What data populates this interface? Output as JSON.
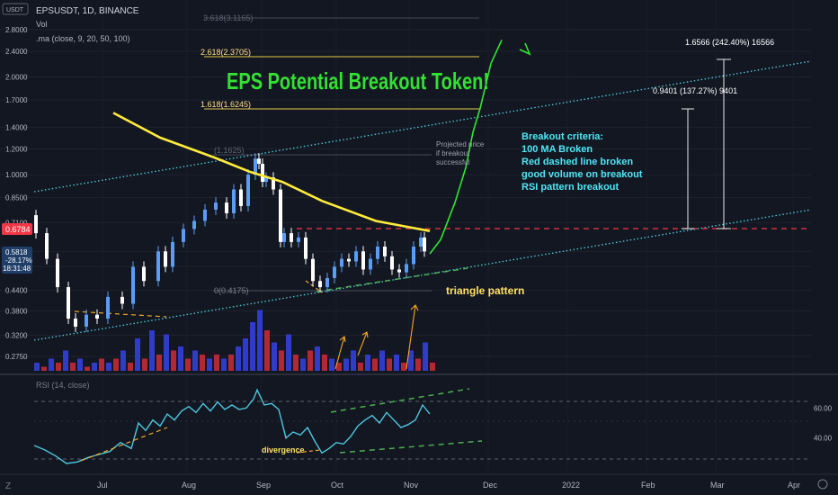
{
  "header": {
    "symbol": "EPSUSDT, 1D, BINANCE",
    "volume_label": "Vol",
    "ma_label": ".ma (close, 9, 20, 50, 100)",
    "currency": "USDT"
  },
  "price_badge": {
    "current": "0.6784",
    "price": "0.5818",
    "change": "-28.17%",
    "countdown": "18:31:48"
  },
  "annotations": {
    "title": "EPS Potential Breakout Token!",
    "triangle": "triangle pattern",
    "divergence": "divergence",
    "projected": [
      "Projected price",
      "if breakout",
      "successful"
    ],
    "criteria": [
      "Breakout criteria:",
      "100 MA Broken",
      "Red dashed line broken",
      "good volume on breakout",
      "RSI pattern breakout"
    ],
    "fib_1": "3.618(3.1165)",
    "fib_2": "2.618(2.3705)",
    "fib_3": "1.618(1.6245)",
    "fib_4": "(1.1625)",
    "fib_5": "0(0.4175)",
    "measure_1": "0.9401 (137.27%) 9401",
    "measure_2": "1.6566 (242.40%) 16566",
    "rsi_label": "RSI (14, close)"
  },
  "colors": {
    "background": "#131722",
    "bull": "#5b9cf6",
    "bear": "#ffffff",
    "ma": "#ffeb3b",
    "channel": "#4dd0e1",
    "resistance": "#f23645",
    "support": "#4caf50",
    "projection": "#32e632",
    "title": "#33e033",
    "criteria": "#4fe6f5",
    "vol_bull": "#2f3cc9",
    "vol_bear": "#b22833",
    "rsi": "#4dc7e0",
    "fib_line": "#e6c84b"
  },
  "chart_data": {
    "type": "line",
    "title": "EPSUSDT, 1D, BINANCE",
    "price_axis": {
      "scale": "log",
      "ticks": [
        "2.8000",
        "2.4000",
        "2.0000",
        "1.7000",
        "1.4000",
        "1.2000",
        "1.0000",
        "0.8500",
        "0.7100",
        "0.5800",
        "0.5200",
        "0.4400",
        "0.3800",
        "0.3200",
        "0.2750"
      ]
    },
    "time_axis": {
      "ticks": [
        "Jul",
        "Aug",
        "Sep",
        "Oct",
        "Nov",
        "Dec",
        "2022",
        "Feb",
        "Mar",
        "Apr"
      ]
    },
    "rsi_axis": {
      "ticks": [
        "60.00",
        "40.00"
      ],
      "ylim": [
        20,
        80
      ]
    },
    "price_path": [
      [
        0,
        0.75
      ],
      [
        3,
        0.66
      ],
      [
        6,
        0.55
      ],
      [
        9,
        0.45
      ],
      [
        11,
        0.36
      ],
      [
        14,
        0.34
      ],
      [
        17,
        0.37
      ],
      [
        20,
        0.36
      ],
      [
        24,
        0.42
      ],
      [
        27,
        0.4
      ],
      [
        30,
        0.52
      ],
      [
        34,
        0.47
      ],
      [
        36,
        0.58
      ],
      [
        38,
        0.52
      ],
      [
        41,
        0.62
      ],
      [
        44,
        0.68
      ],
      [
        47,
        0.72
      ],
      [
        50,
        0.78
      ],
      [
        53,
        0.82
      ],
      [
        55,
        0.76
      ],
      [
        57,
        0.9
      ],
      [
        59,
        0.8
      ],
      [
        61,
        1.0
      ],
      [
        62,
        1.12
      ],
      [
        63,
        1.08
      ],
      [
        64,
        0.95
      ],
      [
        66,
        0.98
      ],
      [
        68,
        0.9
      ],
      [
        69,
        0.62
      ],
      [
        71,
        0.66
      ],
      [
        73,
        0.62
      ],
      [
        75,
        0.64
      ],
      [
        77,
        0.55
      ],
      [
        79,
        0.47
      ],
      [
        81,
        0.45
      ],
      [
        83,
        0.48
      ],
      [
        85,
        0.52
      ],
      [
        87,
        0.55
      ],
      [
        89,
        0.54
      ],
      [
        91,
        0.58
      ],
      [
        93,
        0.51
      ],
      [
        95,
        0.55
      ],
      [
        97,
        0.6
      ],
      [
        99,
        0.56
      ],
      [
        101,
        0.51
      ],
      [
        103,
        0.5
      ],
      [
        105,
        0.53
      ],
      [
        107,
        0.6
      ],
      [
        108,
        0.64
      ],
      [
        110,
        0.58
      ]
    ],
    "ma100_path": [
      [
        22,
        1.55
      ],
      [
        35,
        1.3
      ],
      [
        50,
        1.13
      ],
      [
        60,
        1.02
      ],
      [
        69,
        0.95
      ],
      [
        80,
        0.83
      ],
      [
        95,
        0.72
      ],
      [
        110,
        0.67
      ]
    ],
    "projection_path": [
      [
        110,
        0.57
      ],
      [
        113,
        0.63
      ],
      [
        117,
        0.82
      ],
      [
        120,
        1.05
      ],
      [
        122,
        1.35
      ],
      [
        124,
        1.6
      ],
      [
        127,
        2.2
      ],
      [
        130,
        2.6
      ]
    ],
    "volume_bars": [
      [
        0,
        2,
        1
      ],
      [
        2,
        1,
        0
      ],
      [
        4,
        3,
        1
      ],
      [
        6,
        2,
        0
      ],
      [
        8,
        5,
        1
      ],
      [
        10,
        2,
        0
      ],
      [
        12,
        3,
        1
      ],
      [
        14,
        1,
        0
      ],
      [
        16,
        2,
        1
      ],
      [
        18,
        3,
        0
      ],
      [
        20,
        2,
        1
      ],
      [
        22,
        3,
        0
      ],
      [
        24,
        5,
        1
      ],
      [
        26,
        2,
        0
      ],
      [
        28,
        8,
        1
      ],
      [
        30,
        3,
        0
      ],
      [
        32,
        10,
        1
      ],
      [
        34,
        4,
        0
      ],
      [
        36,
        9,
        1
      ],
      [
        38,
        5,
        0
      ],
      [
        40,
        6,
        1
      ],
      [
        42,
        3,
        0
      ],
      [
        44,
        5,
        1
      ],
      [
        46,
        4,
        0
      ],
      [
        48,
        3,
        1
      ],
      [
        50,
        4,
        0
      ],
      [
        52,
        3,
        1
      ],
      [
        54,
        4,
        0
      ],
      [
        56,
        6,
        1
      ],
      [
        58,
        8,
        1
      ],
      [
        60,
        12,
        1
      ],
      [
        62,
        15,
        1
      ],
      [
        64,
        10,
        0
      ],
      [
        66,
        7,
        1
      ],
      [
        68,
        5,
        0
      ],
      [
        70,
        9,
        1
      ],
      [
        72,
        4,
        0
      ],
      [
        74,
        3,
        1
      ],
      [
        76,
        5,
        0
      ],
      [
        78,
        6,
        1
      ],
      [
        80,
        4,
        0
      ],
      [
        82,
        3,
        1
      ],
      [
        84,
        2,
        0
      ],
      [
        86,
        3,
        1
      ],
      [
        88,
        5,
        1
      ],
      [
        90,
        2,
        0
      ],
      [
        92,
        4,
        1
      ],
      [
        94,
        3,
        0
      ],
      [
        96,
        5,
        1
      ],
      [
        98,
        3,
        0
      ],
      [
        100,
        4,
        1
      ],
      [
        102,
        2,
        0
      ],
      [
        104,
        5,
        1
      ],
      [
        106,
        3,
        0
      ],
      [
        108,
        7,
        1
      ],
      [
        110,
        2,
        0
      ]
    ],
    "rsi_path": [
      [
        0,
        35
      ],
      [
        3,
        32
      ],
      [
        6,
        28
      ],
      [
        9,
        23
      ],
      [
        12,
        24
      ],
      [
        15,
        27
      ],
      [
        18,
        29
      ],
      [
        21,
        31
      ],
      [
        24,
        37
      ],
      [
        27,
        33
      ],
      [
        29,
        50
      ],
      [
        31,
        45
      ],
      [
        33,
        52
      ],
      [
        35,
        48
      ],
      [
        37,
        56
      ],
      [
        39,
        52
      ],
      [
        41,
        58
      ],
      [
        43,
        61
      ],
      [
        45,
        57
      ],
      [
        47,
        63
      ],
      [
        49,
        58
      ],
      [
        51,
        64
      ],
      [
        53,
        59
      ],
      [
        55,
        62
      ],
      [
        57,
        59
      ],
      [
        59,
        60
      ],
      [
        61,
        66
      ],
      [
        62,
        72
      ],
      [
        63,
        67
      ],
      [
        64,
        62
      ],
      [
        66,
        63
      ],
      [
        68,
        59
      ],
      [
        70,
        40
      ],
      [
        72,
        44
      ],
      [
        74,
        42
      ],
      [
        76,
        47
      ],
      [
        78,
        38
      ],
      [
        80,
        30
      ],
      [
        82,
        33
      ],
      [
        84,
        37
      ],
      [
        86,
        36
      ],
      [
        88,
        41
      ],
      [
        90,
        48
      ],
      [
        92,
        52
      ],
      [
        94,
        55
      ],
      [
        96,
        50
      ],
      [
        98,
        57
      ],
      [
        100,
        52
      ],
      [
        102,
        47
      ],
      [
        104,
        49
      ],
      [
        106,
        52
      ],
      [
        108,
        62
      ],
      [
        110,
        56
      ]
    ]
  }
}
